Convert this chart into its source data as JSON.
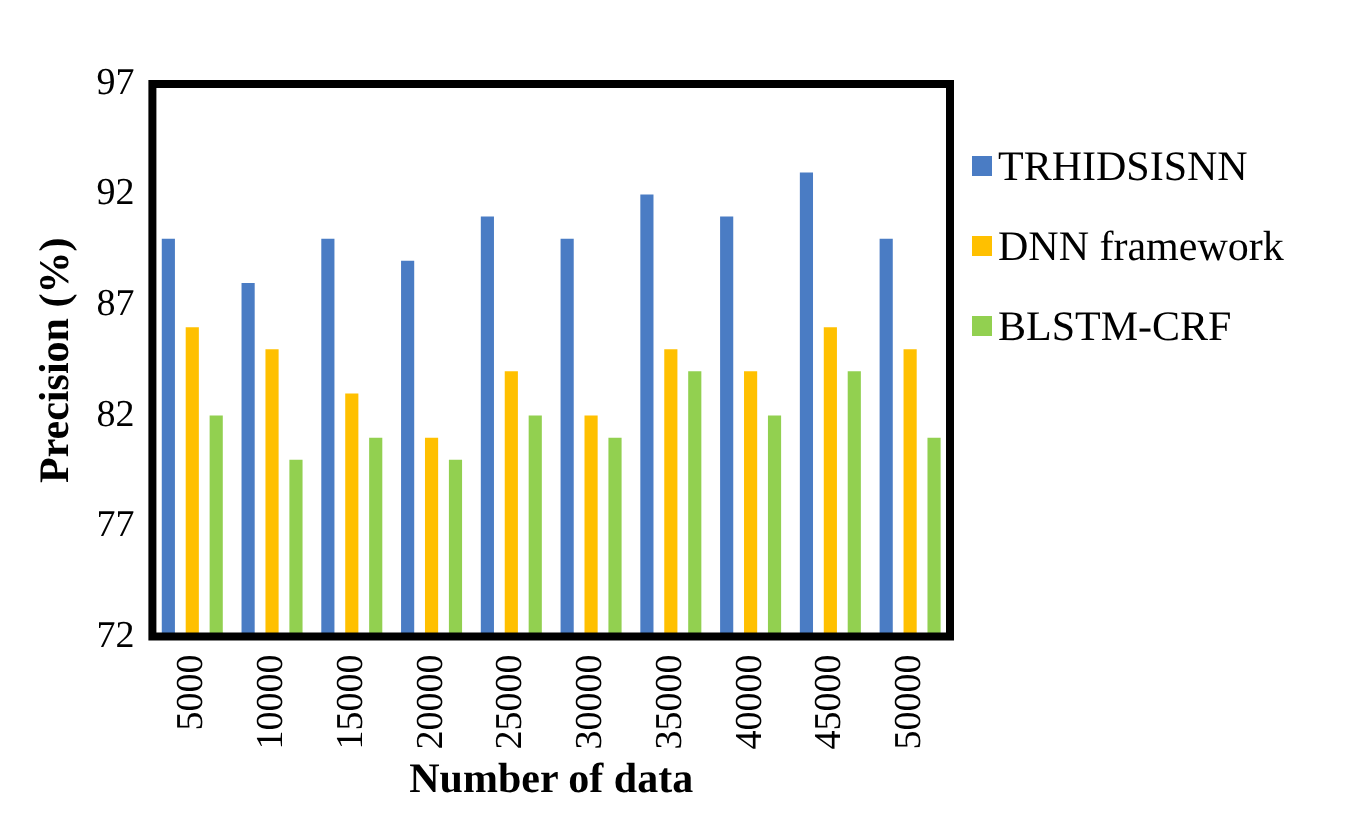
{
  "chart_data": {
    "type": "bar",
    "xlabel": "Number of data",
    "ylabel": "Precision (%)",
    "categories": [
      "5000",
      "10000",
      "15000",
      "20000",
      "25000",
      "30000",
      "35000",
      "40000",
      "45000",
      "50000"
    ],
    "series": [
      {
        "name": "TRHIDSISNN",
        "color": "#4a7cc4",
        "values": [
          90,
          88,
          90,
          89,
          91,
          90,
          92,
          91,
          93,
          90
        ]
      },
      {
        "name": "DNN framework",
        "color": "#ffc000",
        "values": [
          86,
          85,
          83,
          81,
          84,
          82,
          85,
          84,
          86,
          85
        ]
      },
      {
        "name": "BLSTM-CRF",
        "color": "#92d050",
        "values": [
          82,
          80,
          81,
          80,
          82,
          81,
          84,
          82,
          84,
          81
        ]
      }
    ],
    "ylim": [
      72,
      97
    ],
    "yticks": [
      72,
      77,
      82,
      87,
      92,
      97
    ],
    "grid": false,
    "legend": "right"
  }
}
